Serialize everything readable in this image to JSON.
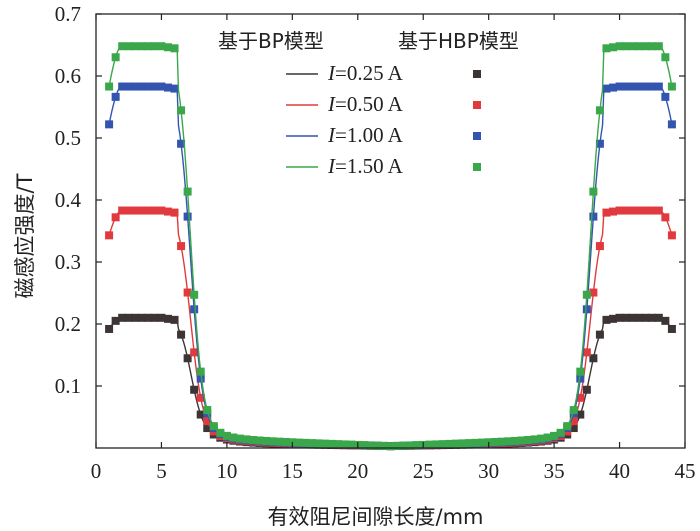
{
  "chart_data": {
    "type": "line",
    "xlabel": "有效阻尼间隙长度/mm",
    "ylabel": "磁感应强度/T",
    "xlim": [
      0,
      45
    ],
    "ylim": [
      0,
      0.7
    ],
    "x_ticks": [
      0,
      5,
      10,
      15,
      20,
      25,
      30,
      35,
      40,
      45
    ],
    "y_ticks": [
      0.1,
      0.2,
      0.3,
      0.4,
      0.5,
      0.6,
      0.7
    ],
    "legend": {
      "placement": "top-center",
      "header_lines": "基于BP模型",
      "header_markers": "基于HBP模型",
      "entries": [
        {
          "prefix": "I",
          "suffix": "=0.25 A"
        },
        {
          "prefix": "I",
          "suffix": "=0.50 A"
        },
        {
          "prefix": "I",
          "suffix": "=1.00 A"
        },
        {
          "prefix": "I",
          "suffix": "=1.50 A"
        }
      ]
    },
    "series": [
      {
        "current": "I=0.25 A",
        "color": "#3d3434",
        "plateau": 0.21,
        "edge": 0.192,
        "valley": 0.003,
        "base": 0.009
      },
      {
        "current": "I=0.50 A",
        "color": "#e03a3e",
        "plateau": 0.383,
        "edge": 0.343,
        "valley": 0.003,
        "base": 0.011
      },
      {
        "current": "I=1.00 A",
        "color": "#3355b0",
        "plateau": 0.583,
        "edge": 0.522,
        "valley": 0.003,
        "base": 0.013
      },
      {
        "current": "I=1.50 A",
        "color": "#3aa84a",
        "plateau": 0.648,
        "edge": 0.583,
        "valley": 0.003,
        "base": 0.015
      }
    ]
  }
}
